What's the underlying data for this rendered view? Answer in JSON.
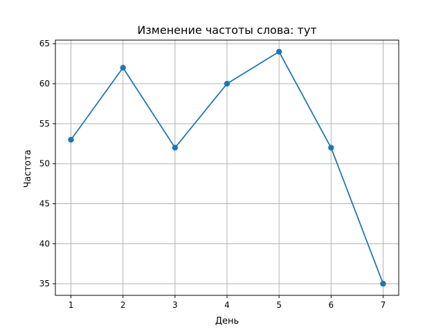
{
  "chart_data": {
    "type": "line",
    "title": "Изменение частоты слова: тут",
    "xlabel": "День",
    "ylabel": "Частота",
    "x": [
      1,
      2,
      3,
      4,
      5,
      6,
      7
    ],
    "series": [
      {
        "values": [
          53,
          62,
          52,
          60,
          64,
          52,
          35
        ],
        "color": "#1f77b4",
        "marker": "circle"
      }
    ],
    "xlim": [
      0.7,
      7.3
    ],
    "ylim": [
      33.55,
      65.45
    ],
    "xticks": [
      1,
      2,
      3,
      4,
      5,
      6,
      7
    ],
    "yticks": [
      35,
      40,
      45,
      50,
      55,
      60,
      65
    ],
    "grid": true
  }
}
